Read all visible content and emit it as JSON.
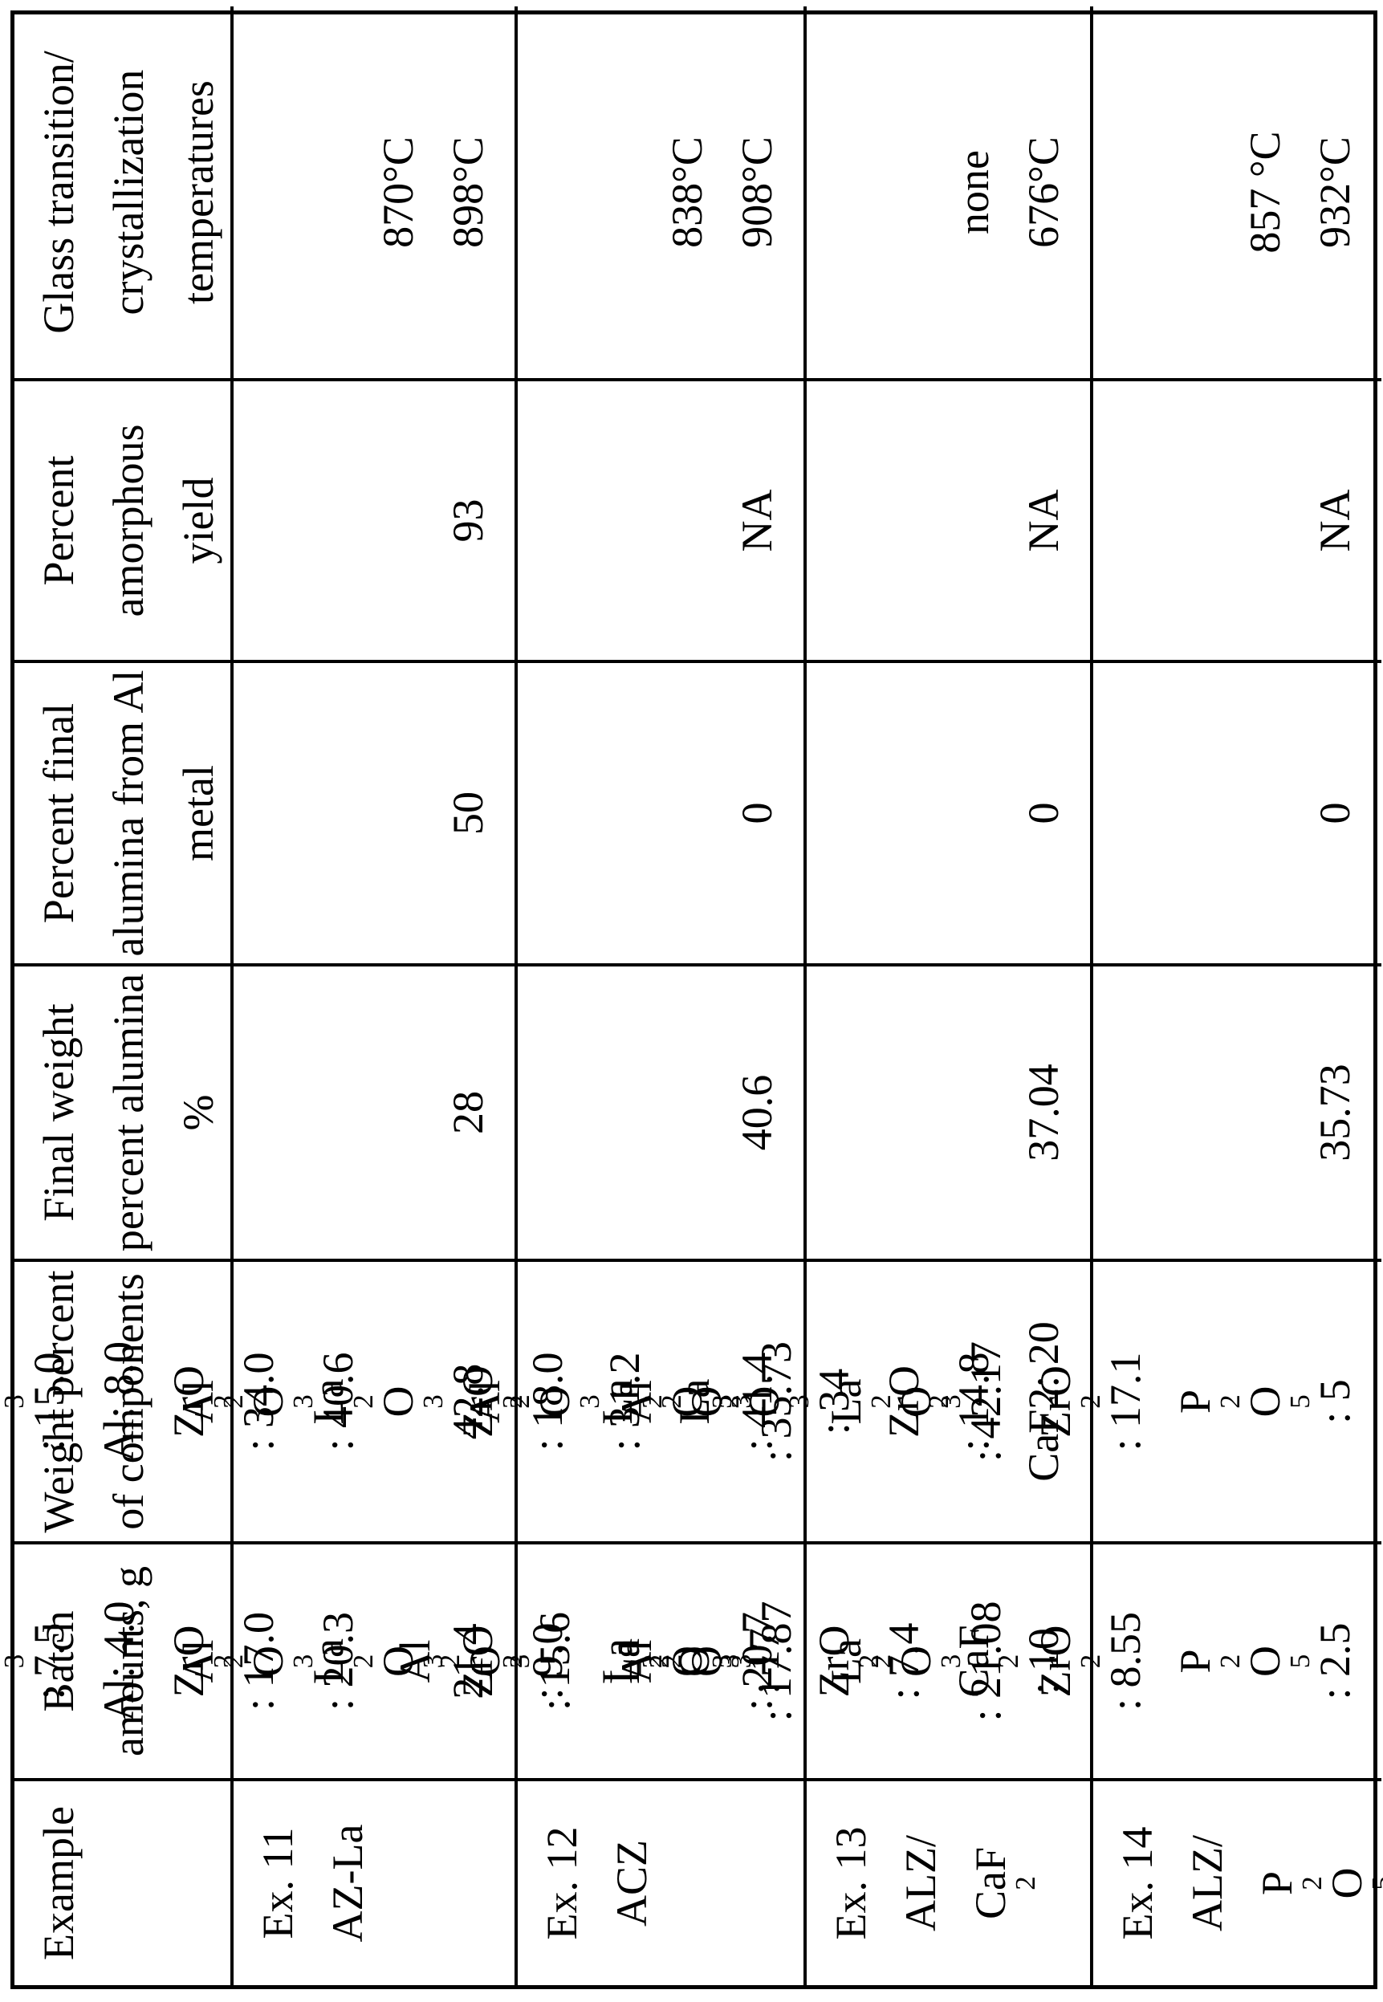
{
  "table": {
    "header": {
      "example": [
        "Example"
      ],
      "batch_amounts_g": [
        "Batch",
        "amounts, g"
      ],
      "weight_percent_of_components": [
        "Weight percent",
        "of components"
      ],
      "final_weight_percent_alumina": [
        "Final weight",
        "percent alumina",
        "%"
      ],
      "percent_final_alumina_from_al_metal": [
        "Percent final",
        "alumina from Al",
        "metal"
      ],
      "percent_amorphous_yield": [
        "Percent",
        "amorphous",
        "yield"
      ],
      "glass_transition_crystallization_temperatures": [
        "Glass transition/",
        "crystallization",
        "temperatures"
      ]
    },
    "rows": [
      {
        "example": [
          "Ex. 11",
          "AZ-La"
        ],
        "batch_amounts_g": [
          "Al[2]O[3]: 7.5",
          "Al: 4.0",
          "ZrO[2]: 17.0",
          "La[2]O[3]21.4"
        ],
        "weight_percent_of_components": [
          "Al[2]O[3]: 15.0",
          "Al: 8.0",
          "ZrO[2]: 34.0",
          "La[2]O[3]42.8"
        ],
        "final_weight_percent_alumina": "28",
        "percent_final_alumina_from_al_metal": "50",
        "percent_amorphous_yield": "93",
        "glass_transition_crystallization_temperatures": [
          "870°C",
          "898°C"
        ]
      },
      {
        "example": [
          "Ex. 12",
          "ACZ"
        ],
        "batch_amounts_g": [
          "Al[2]O[3]: 20.3",
          "",
          "ZrO[2]: 9.0",
          "La[2]O[3]: 20.7"
        ],
        "weight_percent_of_components": [
          "Al[2]O[3]: 40.6",
          "",
          "ZrO[2]: 18.0",
          "La[2]O[3]: 41.4"
        ],
        "final_weight_percent_alumina": "40.6",
        "percent_final_alumina_from_al_metal": "0",
        "percent_amorphous_yield": "NA",
        "glass_transition_crystallization_temperatures": [
          "838°C",
          "908°C"
        ]
      },
      {
        "example": [
          "Ex. 13",
          "ALZ/",
          "CaF[2]"
        ],
        "batch_amounts_g": [
          "Al[2]O[3]: 15.6",
          "La[2]O[3]: 17",
          "ZrO[2]: 7.4",
          "CaF[2]: 10"
        ],
        "weight_percent_of_components": [
          "Al[2]O[3]: 31.2",
          "La[2]O[3]: 34",
          "ZrO[2]: 14.8",
          "CaF2: 20"
        ],
        "final_weight_percent_alumina": "37.04",
        "percent_final_alumina_from_al_metal": "0",
        "percent_amorphous_yield": "NA",
        "glass_transition_crystallization_temperatures": [
          "none",
          "676°C"
        ]
      },
      {
        "example": [
          "Ex. 14",
          "ALZ/",
          "P[2]O[5]"
        ],
        "batch_amounts_g": [
          "Al[2]O[3]: 17.87",
          "La[2]O[3]: 21.08",
          "ZrO[2]: 8.55",
          "P[2]O[5]: 2.5"
        ],
        "weight_percent_of_components": [
          "Al[2]O[3]: 35.73",
          "La[2]O[3]: 42.17",
          "ZrO[2]: 17.1",
          "P[2]O[5]: 5"
        ],
        "final_weight_percent_alumina": "35.73",
        "percent_final_alumina_from_al_metal": "0",
        "percent_amorphous_yield": "NA",
        "glass_transition_crystallization_temperatures": [
          "857 °C",
          "932°C"
        ]
      }
    ]
  }
}
